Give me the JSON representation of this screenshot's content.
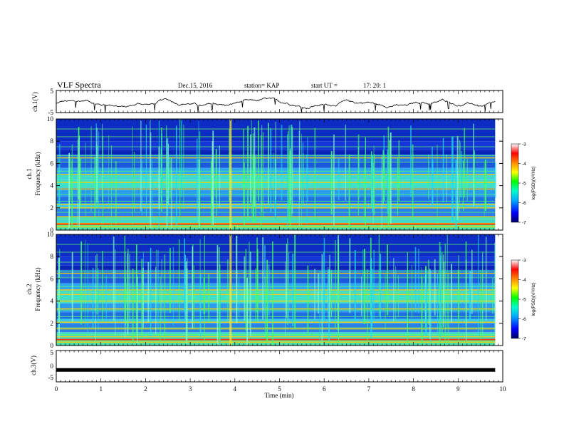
{
  "header": {
    "title": "VLF Spectra",
    "date": "Dec.15, 2016",
    "station": "station= KAP",
    "start_label": "start UT =",
    "start_time": "17: 20: 1"
  },
  "chart_data": [
    {
      "id": "ch1-voltage",
      "type": "line",
      "ylabel": "ch.1(V)",
      "ylim": [
        -5,
        5
      ],
      "y_ticks": [
        "5",
        "-5"
      ],
      "xlim": [
        0,
        10
      ],
      "x_end": 9.83,
      "shape": "noisy trace fluctuating around -1 V"
    },
    {
      "id": "ch1-spectrogram",
      "type": "heatmap",
      "ylabel": "ch.1\nFrequency (kHz)",
      "ylim": [
        0,
        10
      ],
      "y_ticks": [
        "0",
        "2",
        "4",
        "6",
        "8",
        "10"
      ],
      "xlim": [
        0,
        10
      ],
      "x_end": 9.83,
      "colorbar": {
        "label": "log(PSD)(V²/Hz)",
        "range": [
          -7,
          -3
        ],
        "ticks": [
          "-3",
          "-4",
          "-5",
          "-6",
          "-7"
        ],
        "colors": [
          "#000066",
          "#0000ff",
          "#00aaff",
          "#00ffcc",
          "#00ff00",
          "#ffff00",
          "#ff8800",
          "#ff0000",
          "#ffffff"
        ]
      },
      "bands_khz": [
        0.3,
        0.6,
        1.2,
        2.0,
        2.3,
        3.7,
        4.3,
        5.0,
        6.5
      ]
    },
    {
      "id": "ch2-spectrogram",
      "type": "heatmap",
      "ylabel": "ch.2\nFrequency (kHz)",
      "ylim": [
        0,
        10
      ],
      "y_ticks": [
        "0",
        "2",
        "4",
        "6",
        "8",
        "10"
      ],
      "xlim": [
        0,
        10
      ],
      "x_end": 9.83,
      "colorbar": {
        "label": "log(PSD)(V²/Hz)",
        "range": [
          -7,
          -3
        ],
        "ticks": [
          "-3",
          "-4",
          "-5",
          "-6",
          "-7"
        ],
        "colors": [
          "#000066",
          "#0000ff",
          "#00aaff",
          "#00ffcc",
          "#00ff00",
          "#ffff00",
          "#ff8800",
          "#ff0000",
          "#ffffff"
        ]
      },
      "bands_khz": [
        0.3,
        0.8,
        1.5,
        2.1,
        3.3,
        4.0,
        4.6,
        5.0,
        6.5
      ]
    },
    {
      "id": "ch3-voltage",
      "type": "line",
      "ylabel": "ch.3(V)",
      "ylim": [
        -5,
        5
      ],
      "y_ticks": [
        "5",
        "0",
        "-5"
      ],
      "xlim": [
        0,
        10
      ],
      "x_end": 9.83,
      "values_constant": -1.2
    }
  ],
  "x_axis": {
    "label": "Time (min)",
    "ticks": [
      "0",
      "1",
      "2",
      "3",
      "4",
      "5",
      "6",
      "7",
      "8",
      "9",
      "10"
    ]
  },
  "colors": {
    "trace": "#000000",
    "background": "#ffffff"
  }
}
